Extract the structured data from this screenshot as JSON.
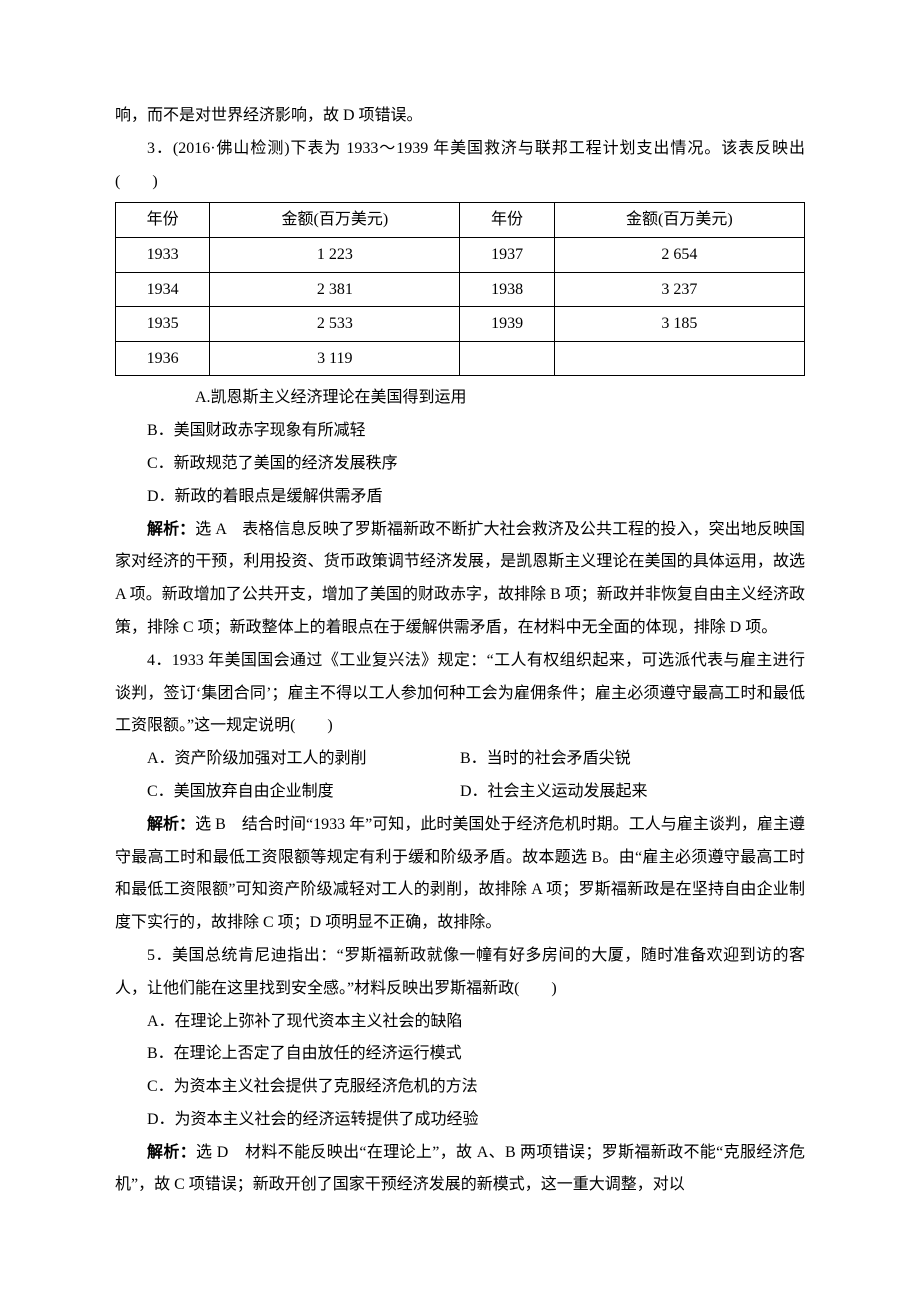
{
  "top_line": "响，而不是对世界经济影响，故 D 项错误。",
  "q3": {
    "stem": "3．(2016·佛山检测)下表为 1933～1939 年美国救济与联邦工程计划支出情况。该表反映出(　　)",
    "table": {
      "headers": [
        "年份",
        "金额(百万美元)",
        "年份",
        "金额(百万美元)"
      ],
      "rows": [
        [
          "1933",
          "1 223",
          "1937",
          "2 654"
        ],
        [
          "1934",
          "2 381",
          "1938",
          "3 237"
        ],
        [
          "1935",
          "2 533",
          "1939",
          "3 185"
        ],
        [
          "1936",
          "3 119",
          "",
          ""
        ]
      ]
    },
    "options": {
      "A": "A.凯恩斯主义经济理论在美国得到运用",
      "B": "B．美国财政赤字现象有所减轻",
      "C": "C．新政规范了美国的经济发展秩序",
      "D": "D．新政的着眼点是缓解供需矛盾"
    },
    "analysis_label": "解析：",
    "analysis_text": "选 A　表格信息反映了罗斯福新政不断扩大社会救济及公共工程的投入，突出地反映国家对经济的干预，利用投资、货币政策调节经济发展，是凯恩斯主义理论在美国的具体运用，故选 A 项。新政增加了公共开支，增加了美国的财政赤字，故排除 B 项；新政并非恢复自由主义经济政策，排除 C 项；新政整体上的着眼点在于缓解供需矛盾，在材料中无全面的体现，排除 D 项。"
  },
  "q4": {
    "stem": "4．1933 年美国国会通过《工业复兴法》规定：“工人有权组织起来，可选派代表与雇主进行谈判，签订‘集团合同’；雇主不得以工人参加何种工会为雇佣条件；雇主必须遵守最高工时和最低工资限额。”这一规定说明(　　)",
    "options": {
      "A": "A．资产阶级加强对工人的剥削",
      "B": "B．当时的社会矛盾尖锐",
      "C": "C．美国放弃自由企业制度",
      "D": "D．社会主义运动发展起来"
    },
    "analysis_label": "解析：",
    "analysis_text": "选 B　结合时间“1933 年”可知，此时美国处于经济危机时期。工人与雇主谈判，雇主遵守最高工时和最低工资限额等规定有利于缓和阶级矛盾。故本题选 B。由“雇主必须遵守最高工时和最低工资限额”可知资产阶级减轻对工人的剥削，故排除 A 项；罗斯福新政是在坚持自由企业制度下实行的，故排除 C 项；D 项明显不正确，故排除。"
  },
  "q5": {
    "stem": "5．美国总统肯尼迪指出：“罗斯福新政就像一幢有好多房间的大厦，随时准备欢迎到访的客人，让他们能在这里找到安全感。”材料反映出罗斯福新政(　　)",
    "options": {
      "A": "A．在理论上弥补了现代资本主义社会的缺陷",
      "B": "B．在理论上否定了自由放任的经济运行模式",
      "C": "C．为资本主义社会提供了克服经济危机的方法",
      "D": "D．为资本主义社会的经济运转提供了成功经验"
    },
    "analysis_label": "解析：",
    "analysis_text": "选 D　材料不能反映出“在理论上”，故 A、B 两项错误；罗斯福新政不能“克服经济危机”，故 C 项错误；新政开创了国家干预经济发展的新模式，这一重大调整，对以"
  }
}
